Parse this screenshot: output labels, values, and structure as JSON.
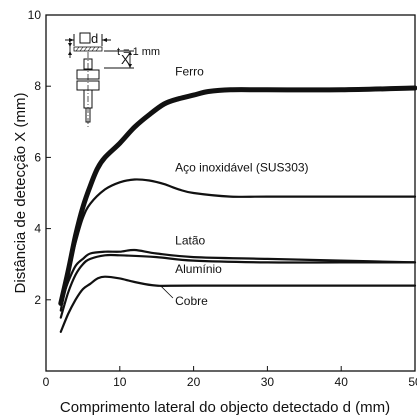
{
  "chart_data": {
    "type": "line",
    "xlabel": "Comprimento lateral do objecto detectado d (mm)",
    "ylabel": "Distância de detecção X (mm)",
    "xlim": [
      0,
      50
    ],
    "ylim": [
      0,
      10
    ],
    "x_ticks": [
      "0",
      "10",
      "20",
      "30",
      "40",
      "50"
    ],
    "y_ticks": [
      "2",
      "4",
      "6",
      "8",
      "10"
    ],
    "grid": false,
    "series": [
      {
        "name": "Ferro",
        "stroke": "heavy",
        "points": [
          [
            2,
            1.9
          ],
          [
            3,
            2.8
          ],
          [
            4,
            3.8
          ],
          [
            5,
            4.6
          ],
          [
            6,
            5.2
          ],
          [
            7,
            5.7
          ],
          [
            8,
            6.0
          ],
          [
            10,
            6.4
          ],
          [
            12,
            6.85
          ],
          [
            14,
            7.2
          ],
          [
            16,
            7.5
          ],
          [
            18,
            7.65
          ],
          [
            20,
            7.75
          ],
          [
            22,
            7.85
          ],
          [
            25,
            7.9
          ],
          [
            30,
            7.9
          ],
          [
            40,
            7.9
          ],
          [
            50,
            7.95
          ]
        ]
      },
      {
        "name": "Aço inoxidável (SUS303)",
        "stroke": "normal",
        "points": [
          [
            2,
            1.7
          ],
          [
            3,
            2.8
          ],
          [
            4,
            3.6
          ],
          [
            5,
            4.3
          ],
          [
            6,
            4.7
          ],
          [
            8,
            5.1
          ],
          [
            10,
            5.3
          ],
          [
            12,
            5.38
          ],
          [
            14,
            5.35
          ],
          [
            16,
            5.25
          ],
          [
            18,
            5.1
          ],
          [
            20,
            5.0
          ],
          [
            25,
            4.9
          ],
          [
            30,
            4.9
          ],
          [
            40,
            4.9
          ],
          [
            50,
            4.9
          ]
        ]
      },
      {
        "name": "Latão",
        "stroke": "normal",
        "points": [
          [
            2,
            1.9
          ],
          [
            3,
            2.5
          ],
          [
            4,
            2.95
          ],
          [
            5,
            3.15
          ],
          [
            6,
            3.3
          ],
          [
            8,
            3.35
          ],
          [
            10,
            3.35
          ],
          [
            12,
            3.4
          ],
          [
            15,
            3.3
          ],
          [
            20,
            3.2
          ],
          [
            30,
            3.15
          ],
          [
            40,
            3.1
          ],
          [
            50,
            3.05
          ]
        ]
      },
      {
        "name": "Alumínio",
        "stroke": "normal",
        "points": [
          [
            2,
            1.5
          ],
          [
            3,
            2.2
          ],
          [
            4,
            2.7
          ],
          [
            5,
            3.0
          ],
          [
            6,
            3.15
          ],
          [
            8,
            3.25
          ],
          [
            10,
            3.25
          ],
          [
            15,
            3.2
          ],
          [
            20,
            3.1
          ],
          [
            30,
            3.05
          ],
          [
            40,
            3.05
          ],
          [
            50,
            3.05
          ]
        ]
      },
      {
        "name": "Cobre",
        "stroke": "normal",
        "points": [
          [
            2,
            1.1
          ],
          [
            3,
            1.6
          ],
          [
            4,
            2.0
          ],
          [
            5,
            2.3
          ],
          [
            6,
            2.45
          ],
          [
            7,
            2.6
          ],
          [
            8,
            2.65
          ],
          [
            10,
            2.6
          ],
          [
            12,
            2.5
          ],
          [
            15,
            2.4
          ],
          [
            20,
            2.4
          ],
          [
            50,
            2.4
          ]
        ]
      }
    ],
    "inset": {
      "target_label": "d",
      "gap_label": "X",
      "thickness_label": "t = 1 mm"
    }
  }
}
